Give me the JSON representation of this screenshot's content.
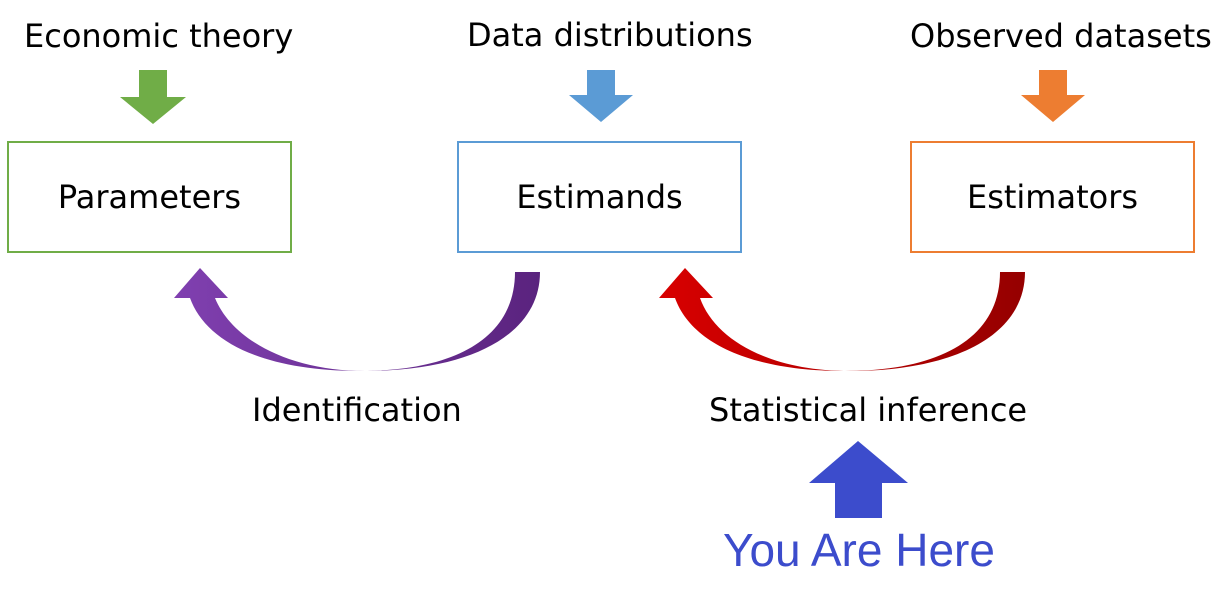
{
  "sources": [
    {
      "label": "Economic theory",
      "color": "#70ad47"
    },
    {
      "label": "Data distributions",
      "color": "#5b9bd5"
    },
    {
      "label": "Observed datasets",
      "color": "#ed7d31"
    }
  ],
  "boxes": [
    {
      "label": "Parameters",
      "border": "#70ad47"
    },
    {
      "label": "Estimands",
      "border": "#5b9bd5"
    },
    {
      "label": "Estimators",
      "border": "#ed7d31"
    }
  ],
  "links": [
    {
      "label": "Identification",
      "from": "Estimands",
      "to": "Parameters",
      "color": "#7030a0"
    },
    {
      "label": "Statistical inference",
      "from": "Estimators",
      "to": "Estimands",
      "color": "#c00000"
    }
  ],
  "marker": {
    "label": "You Are Here",
    "color": "#3c4ccc"
  }
}
